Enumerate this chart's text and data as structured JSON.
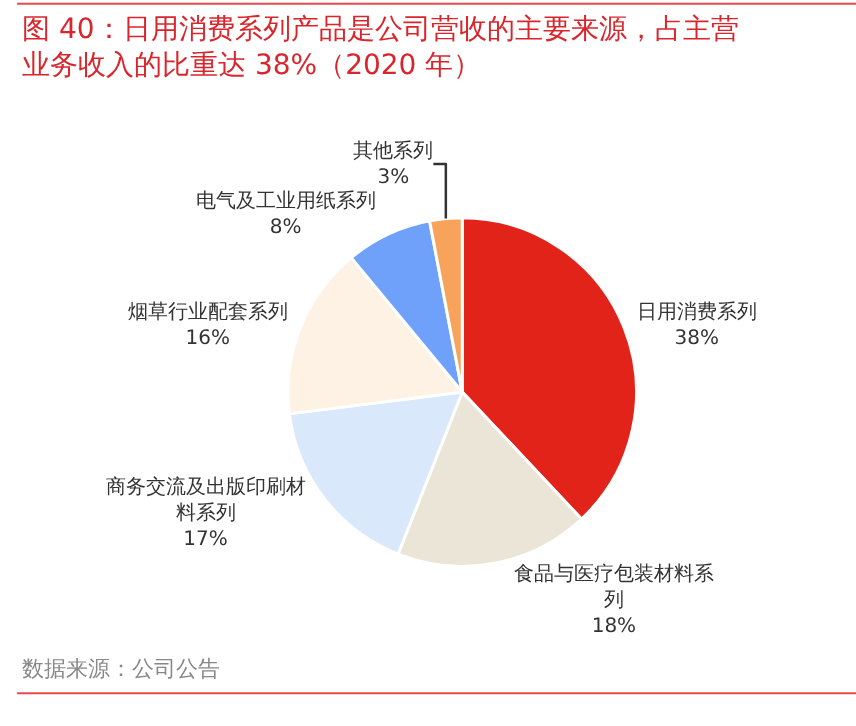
{
  "chart_data": {
    "type": "pie",
    "title": "图 40：日用消费系列产品是公司营收的主要来源，占主营业务收入的比重达 38%（2020 年）",
    "categories": [
      "日用消费系列",
      "食品与医疗包装材料系列",
      "商务交流及出版印刷材料系列",
      "烟草行业配套系列",
      "电气及工业用纸系列",
      "其他系列"
    ],
    "values": [
      38,
      18,
      17,
      16,
      8,
      3
    ],
    "value_labels": [
      "38%",
      "18%",
      "17%",
      "16%",
      "8%",
      "3%"
    ],
    "colors": [
      "#e2231a",
      "#ebe5d7",
      "#dae8fc",
      "#fdf2e3",
      "#6fa1fb",
      "#f7a35c"
    ],
    "legend": false,
    "annotations": [
      "数据来源：公司公告"
    ]
  }
}
